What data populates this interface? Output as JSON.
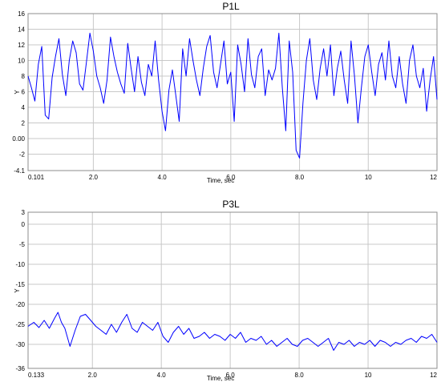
{
  "chart_data": [
    {
      "type": "line",
      "title": "P1L",
      "xlabel": "Time, sec",
      "ylabel": "Y",
      "xlim": [
        0.101,
        12
      ],
      "ylim": [
        -4.1,
        16
      ],
      "yticks": [
        "16",
        "14",
        "12",
        "10",
        "8",
        "6",
        "4",
        "2",
        "0.00",
        "-2",
        "-4.1"
      ],
      "yticks_values": [
        16,
        14,
        12,
        10,
        8,
        6,
        4,
        2,
        0,
        -2,
        -4.1
      ],
      "xticks": [
        "0.101",
        "2.0",
        "4.0",
        "6.0",
        "8.0",
        "10",
        "12"
      ],
      "xticks_values": [
        0.101,
        2,
        4,
        6,
        8,
        10,
        12
      ],
      "grid": true,
      "series": [
        {
          "color": "#0000ff",
          "x": [
            0.1,
            0.2,
            0.3,
            0.4,
            0.5,
            0.6,
            0.7,
            0.8,
            0.9,
            1.0,
            1.1,
            1.2,
            1.3,
            1.4,
            1.5,
            1.6,
            1.7,
            1.8,
            1.9,
            2.0,
            2.1,
            2.2,
            2.3,
            2.4,
            2.5,
            2.6,
            2.7,
            2.8,
            2.9,
            3.0,
            3.1,
            3.2,
            3.3,
            3.4,
            3.5,
            3.6,
            3.7,
            3.8,
            3.9,
            4.0,
            4.1,
            4.2,
            4.3,
            4.4,
            4.5,
            4.6,
            4.7,
            4.8,
            4.9,
            5.0,
            5.1,
            5.2,
            5.3,
            5.4,
            5.5,
            5.6,
            5.7,
            5.8,
            5.9,
            6.0,
            6.1,
            6.2,
            6.3,
            6.4,
            6.5,
            6.6,
            6.7,
            6.8,
            6.9,
            7.0,
            7.1,
            7.2,
            7.3,
            7.4,
            7.5,
            7.6,
            7.7,
            7.8,
            7.9,
            8.0,
            8.1,
            8.2,
            8.3,
            8.4,
            8.5,
            8.6,
            8.7,
            8.8,
            8.9,
            9.0,
            9.1,
            9.2,
            9.3,
            9.4,
            9.5,
            9.6,
            9.7,
            9.8,
            9.9,
            10.0,
            10.1,
            10.2,
            10.3,
            10.4,
            10.5,
            10.6,
            10.7,
            10.8,
            10.9,
            11.0,
            11.1,
            11.2,
            11.3,
            11.4,
            11.5,
            11.6,
            11.7,
            11.8,
            11.9,
            12.0
          ],
          "y": [
            8.0,
            6.5,
            4.8,
            9.5,
            11.8,
            3.0,
            2.5,
            7.8,
            10.5,
            12.8,
            8.2,
            5.5,
            10.0,
            12.5,
            11.0,
            7.0,
            6.2,
            9.8,
            13.5,
            11.2,
            8.0,
            6.5,
            4.5,
            7.5,
            13.0,
            10.5,
            8.5,
            7.0,
            5.8,
            12.2,
            9.0,
            6.0,
            10.5,
            7.2,
            5.5,
            9.5,
            8.0,
            12.5,
            7.5,
            3.5,
            1.0,
            6.2,
            8.8,
            5.5,
            2.2,
            11.5,
            8.0,
            12.8,
            10.0,
            7.5,
            5.5,
            9.0,
            11.8,
            13.2,
            8.5,
            6.5,
            9.5,
            12.5,
            7.0,
            8.5,
            2.2,
            12.0,
            9.5,
            6.0,
            12.8,
            8.2,
            6.5,
            10.5,
            11.5,
            5.5,
            8.8,
            7.5,
            9.0,
            13.5,
            6.5,
            1.0,
            12.5,
            8.5,
            -1.5,
            -2.5,
            4.5,
            10.0,
            12.8,
            7.5,
            5.0,
            9.0,
            11.5,
            8.0,
            12.0,
            5.5,
            9.0,
            11.2,
            7.5,
            4.5,
            12.5,
            8.0,
            2.0,
            6.5,
            10.5,
            12.0,
            8.5,
            5.5,
            9.5,
            11.0,
            7.5,
            12.5,
            8.0,
            6.5,
            10.5,
            7.0,
            4.5,
            10.0,
            12.0,
            8.0,
            6.5,
            9.0,
            3.5,
            7.5,
            10.5,
            5.0
          ]
        }
      ]
    },
    {
      "type": "line",
      "title": "P3L",
      "xlabel": "Time, sec",
      "ylabel": "Y",
      "xlim": [
        0.133,
        12
      ],
      "ylim": [
        -36,
        3
      ],
      "yticks": [
        "3",
        "0",
        "-5",
        "-10",
        "-15",
        "-20",
        "-25",
        "-30",
        "-36"
      ],
      "yticks_values": [
        3,
        0,
        -5,
        -10,
        -15,
        -20,
        -25,
        -30,
        -36
      ],
      "xticks": [
        "0.133",
        "2.0",
        "4.0",
        "6.0",
        "8.0",
        "10",
        "12"
      ],
      "xticks_values": [
        0.133,
        2,
        4,
        6,
        8,
        10,
        12
      ],
      "grid": true,
      "series": [
        {
          "color": "#0000ff",
          "x": [
            0.13,
            0.3,
            0.45,
            0.6,
            0.75,
            0.9,
            1.0,
            1.1,
            1.2,
            1.35,
            1.5,
            1.65,
            1.8,
            1.95,
            2.1,
            2.25,
            2.4,
            2.55,
            2.7,
            2.85,
            3.0,
            3.15,
            3.3,
            3.45,
            3.6,
            3.75,
            3.9,
            4.05,
            4.2,
            4.35,
            4.5,
            4.65,
            4.8,
            4.95,
            5.1,
            5.25,
            5.4,
            5.55,
            5.7,
            5.85,
            6.0,
            6.15,
            6.3,
            6.45,
            6.6,
            6.75,
            6.9,
            7.05,
            7.2,
            7.35,
            7.5,
            7.65,
            7.8,
            7.95,
            8.1,
            8.25,
            8.4,
            8.55,
            8.7,
            8.85,
            9.0,
            9.15,
            9.3,
            9.45,
            9.6,
            9.75,
            9.9,
            10.05,
            10.2,
            10.35,
            10.5,
            10.65,
            10.8,
            10.95,
            11.1,
            11.25,
            11.4,
            11.55,
            11.7,
            11.85,
            12.0
          ],
          "y": [
            -25.5,
            -24.5,
            -25.8,
            -24.0,
            -26.0,
            -23.5,
            -22.0,
            -24.5,
            -26.0,
            -30.5,
            -26.5,
            -23.0,
            -22.5,
            -24.0,
            -25.5,
            -26.5,
            -27.5,
            -25.0,
            -27.0,
            -24.5,
            -22.5,
            -26.0,
            -27.0,
            -24.5,
            -25.5,
            -26.5,
            -24.5,
            -28.0,
            -29.5,
            -27.0,
            -25.5,
            -27.5,
            -26.0,
            -28.5,
            -28.0,
            -27.0,
            -28.5,
            -27.5,
            -28.0,
            -29.0,
            -27.5,
            -28.5,
            -27.0,
            -29.5,
            -28.5,
            -29.0,
            -28.0,
            -30.0,
            -29.0,
            -30.5,
            -29.5,
            -28.5,
            -30.0,
            -30.5,
            -29.0,
            -28.5,
            -29.5,
            -30.5,
            -29.5,
            -28.5,
            -31.5,
            -29.5,
            -30.0,
            -29.0,
            -30.5,
            -29.5,
            -30.0,
            -29.0,
            -30.5,
            -29.0,
            -29.5,
            -30.5,
            -29.5,
            -30.0,
            -29.0,
            -28.5,
            -29.5,
            -28.0,
            -28.5,
            -27.5,
            -29.5
          ]
        }
      ]
    }
  ]
}
